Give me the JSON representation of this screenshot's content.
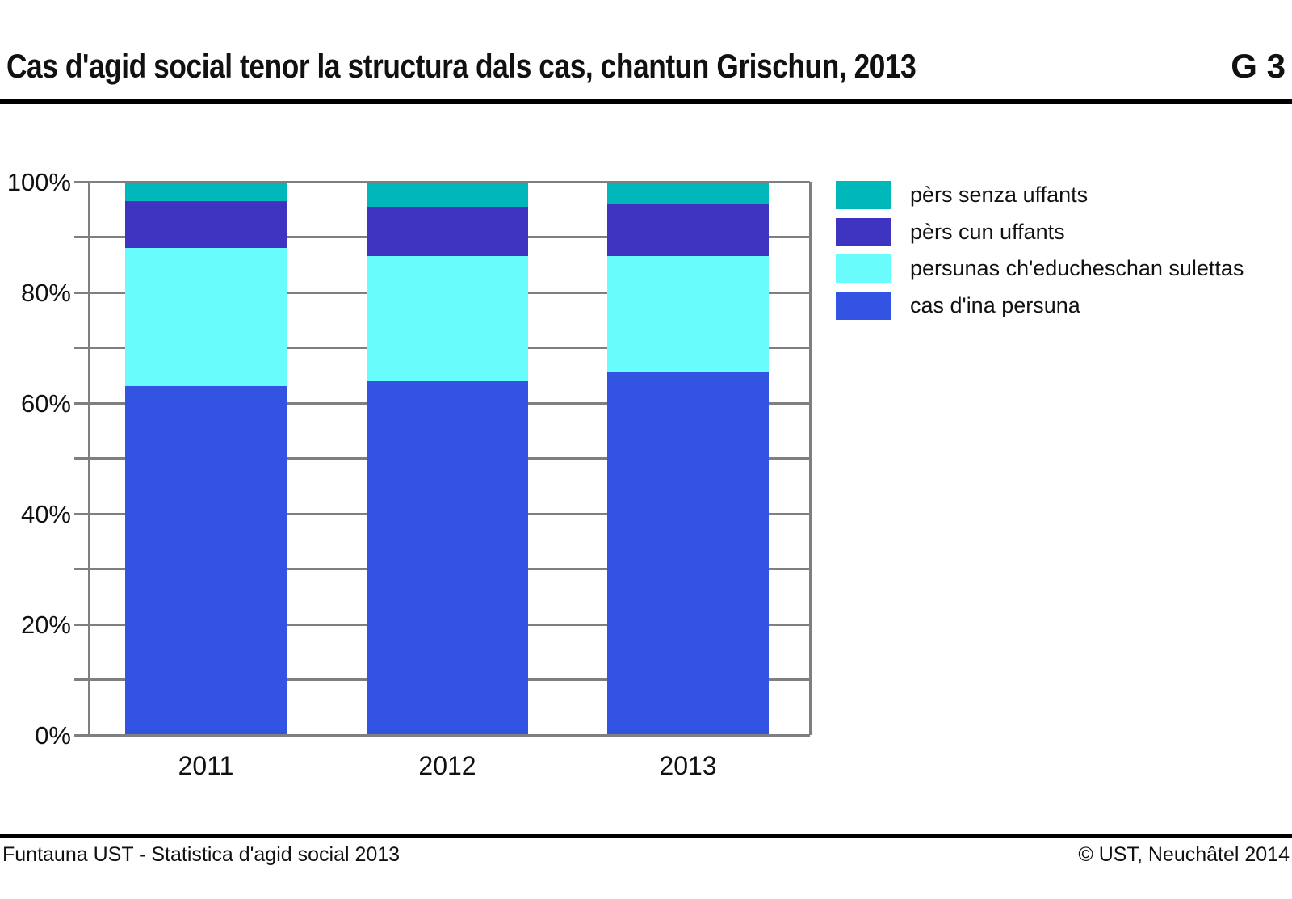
{
  "header": {
    "title": "Cas d'agid social tenor la structura dals cas, chantun Grischun, 2013",
    "tag": "G 3"
  },
  "chart_data": {
    "type": "bar",
    "stacked": true,
    "categories": [
      "2011",
      "2012",
      "2013"
    ],
    "unit": "%",
    "series": [
      {
        "name": "cas d'ina persuna",
        "color": "#3354E2",
        "values": [
          63.0,
          64.0,
          65.5
        ]
      },
      {
        "name": "persunas ch'educheschan sulettas",
        "color": "#68FCFC",
        "values": [
          25.0,
          22.5,
          21.0
        ]
      },
      {
        "name": "pèrs cun uffants",
        "color": "#3F33C1",
        "values": [
          8.5,
          9.0,
          9.5
        ]
      },
      {
        "name": "pèrs senza uffants",
        "color": "#00B7BA",
        "values": [
          3.5,
          4.5,
          4.0
        ]
      }
    ],
    "legend_order_top_to_bottom": [
      "pèrs senza uffants",
      "pèrs cun uffants",
      "persunas ch'educheschan sulettas",
      "cas d'ina persuna"
    ],
    "title": "Cas d'agid social tenor la structura dals cas, chantun Grischun, 2013",
    "xlabel": "",
    "ylabel": "",
    "ylim": [
      0,
      100
    ],
    "grid_step": 10,
    "label_step": 20,
    "ytick_labels": [
      "0%",
      "20%",
      "40%",
      "60%",
      "80%",
      "100%"
    ],
    "grid_on": true,
    "grid_color": "#7F7F7F",
    "legend_position": "right"
  },
  "footer": {
    "source": "Funtauna UST - Statistica d'agid social 2013",
    "copyright": "© UST, Neuchâtel 2014"
  }
}
